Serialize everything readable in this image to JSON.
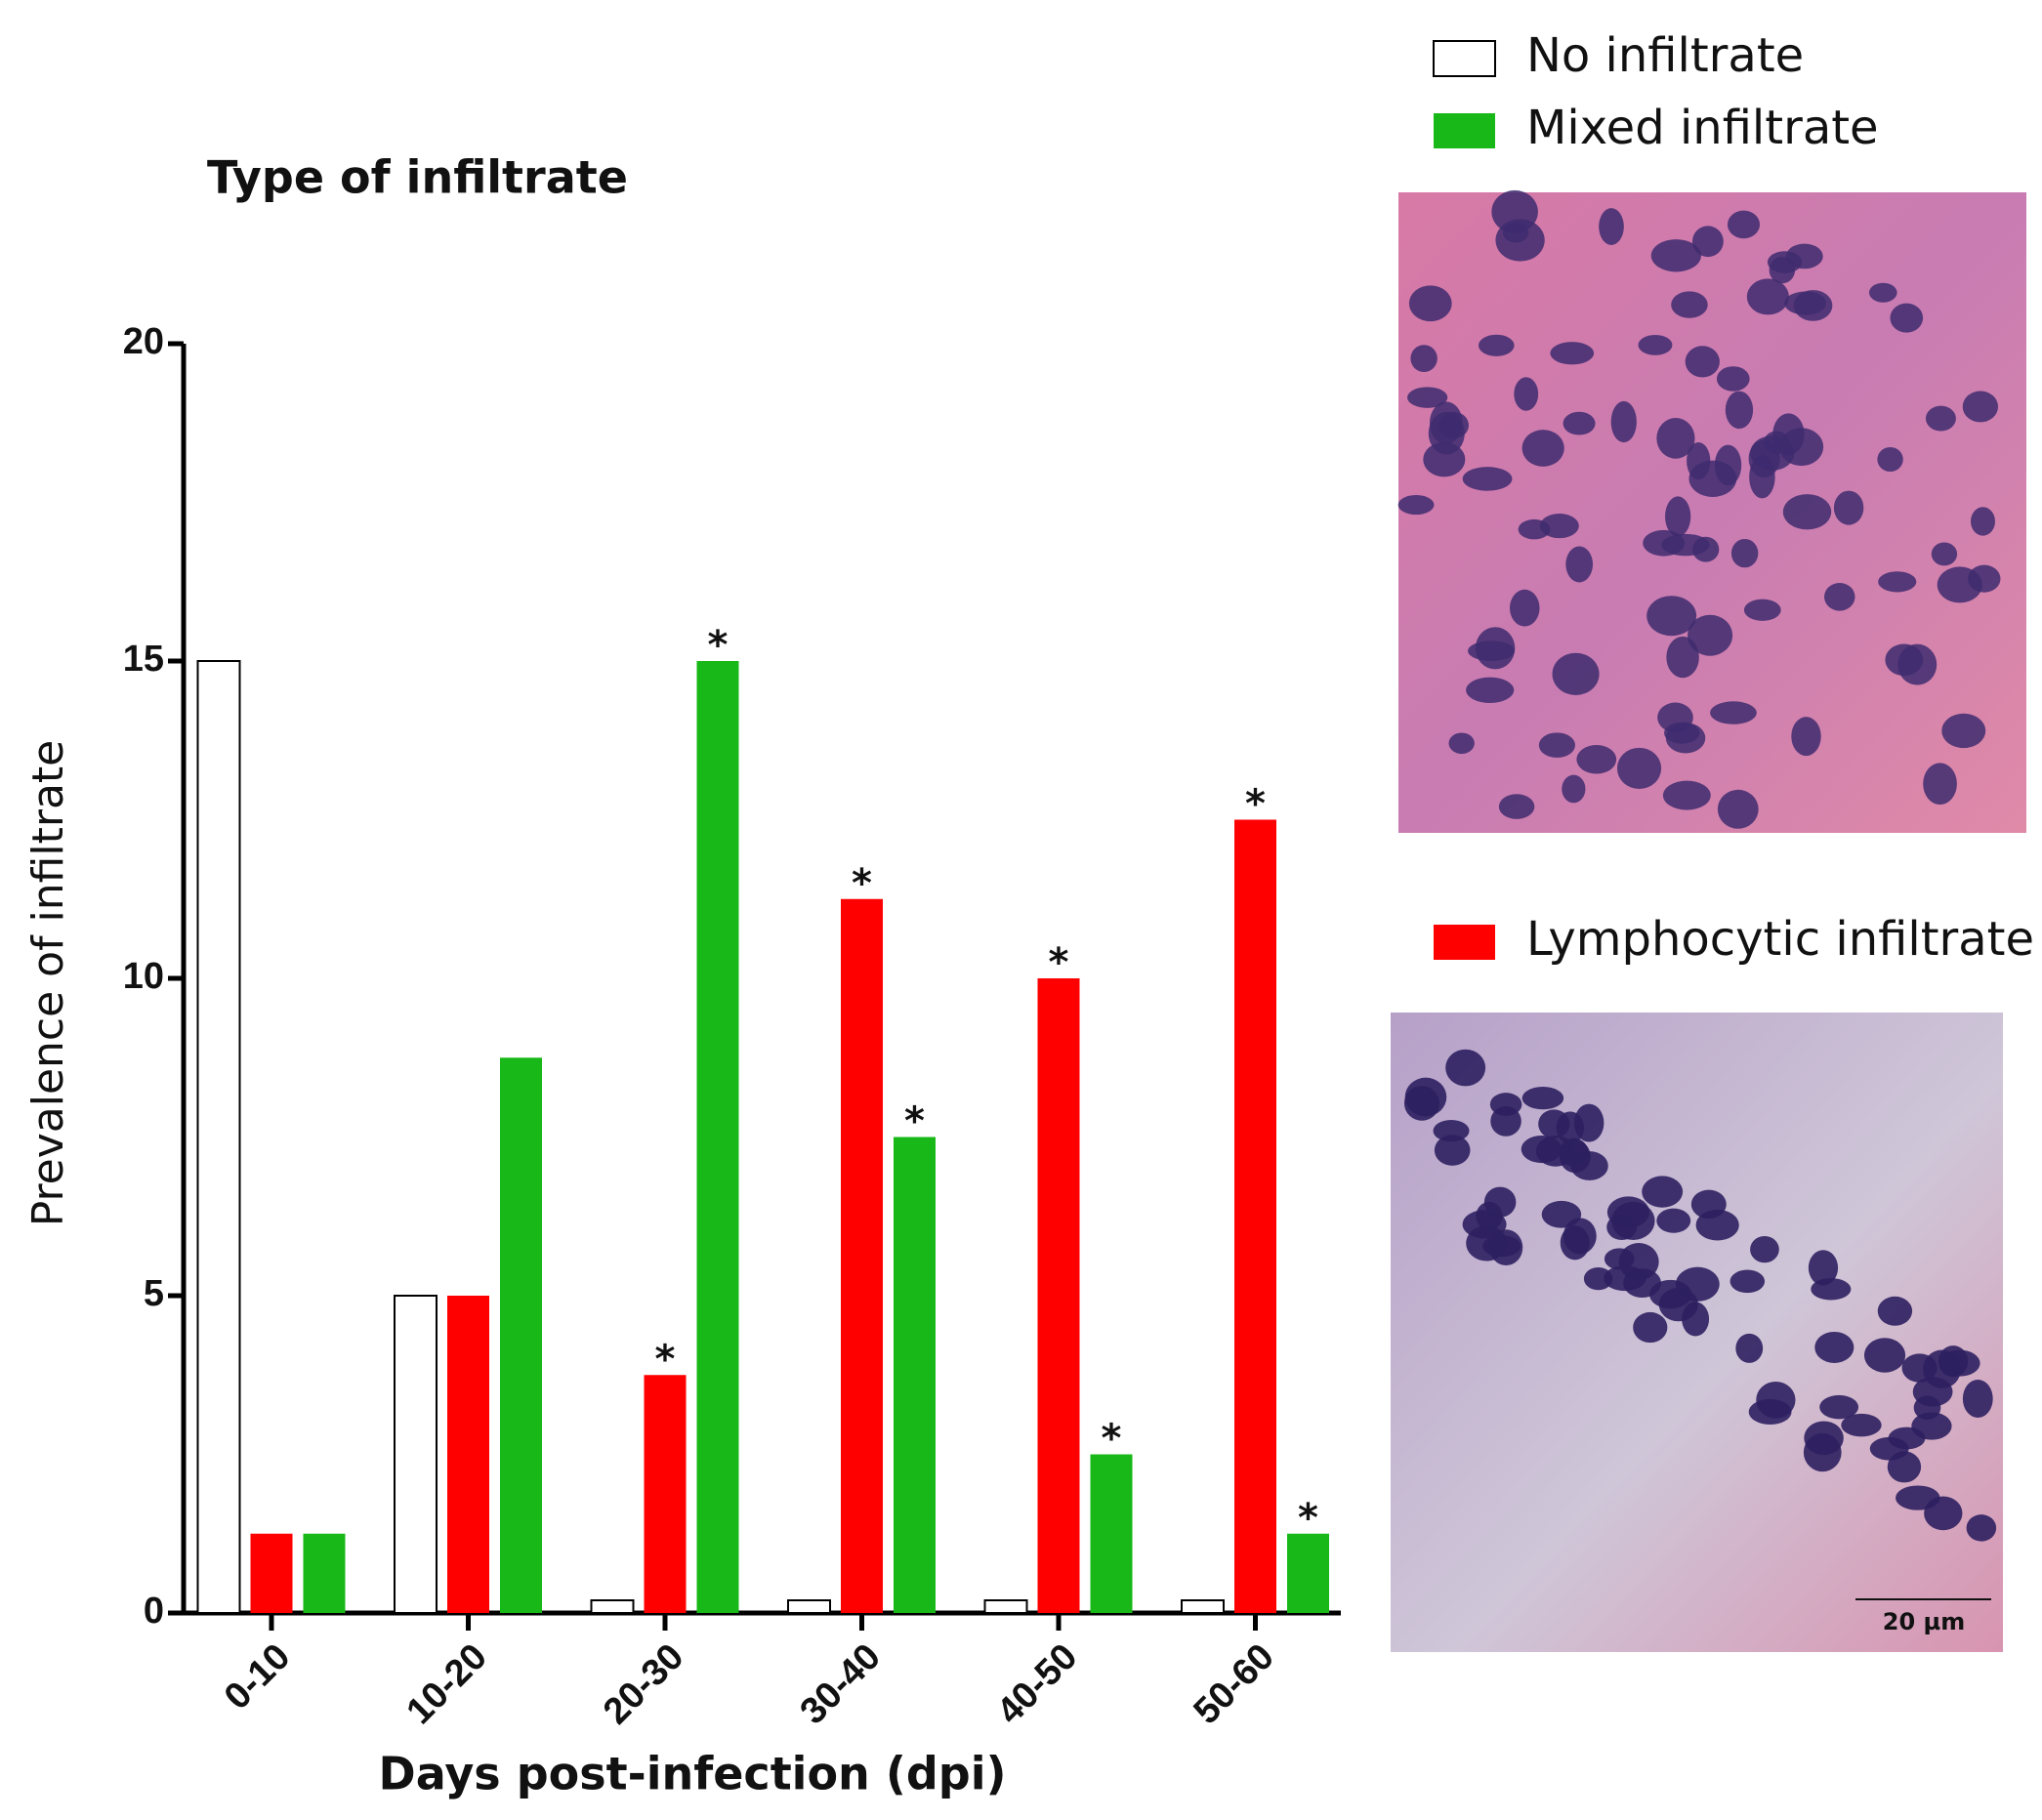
{
  "chart_data": {
    "type": "bar",
    "title": "Type of infiltrate",
    "x_label": "Days post-infection (dpi)",
    "y_label": "Prevalence of infiltrate",
    "categories": [
      "0-10",
      "10-20",
      "20-30",
      "30-40",
      "40-50",
      "50-60"
    ],
    "series": [
      {
        "name": "No infiltrate",
        "color": "#ffffff",
        "values": [
          15,
          5,
          0.2,
          0.2,
          0.2,
          0.2
        ],
        "markers": [
          null,
          null,
          null,
          null,
          null,
          null
        ]
      },
      {
        "name": "Lymphocytic infiltrate",
        "color": "#ff0000",
        "values": [
          1.25,
          5,
          3.75,
          11.25,
          10,
          12.5
        ],
        "markers": [
          null,
          null,
          "*",
          "*",
          "*",
          "*"
        ]
      },
      {
        "name": "Mixed infiltrate",
        "color": "#18b818",
        "values": [
          1.25,
          8.75,
          15,
          7.5,
          2.5,
          1.25
        ],
        "markers": [
          null,
          null,
          "*",
          "*",
          "*",
          "*"
        ]
      }
    ],
    "ylim": [
      0,
      20
    ],
    "yticks": [
      0,
      5,
      10,
      15,
      20
    ],
    "scale_bar_label": "20 µm"
  }
}
